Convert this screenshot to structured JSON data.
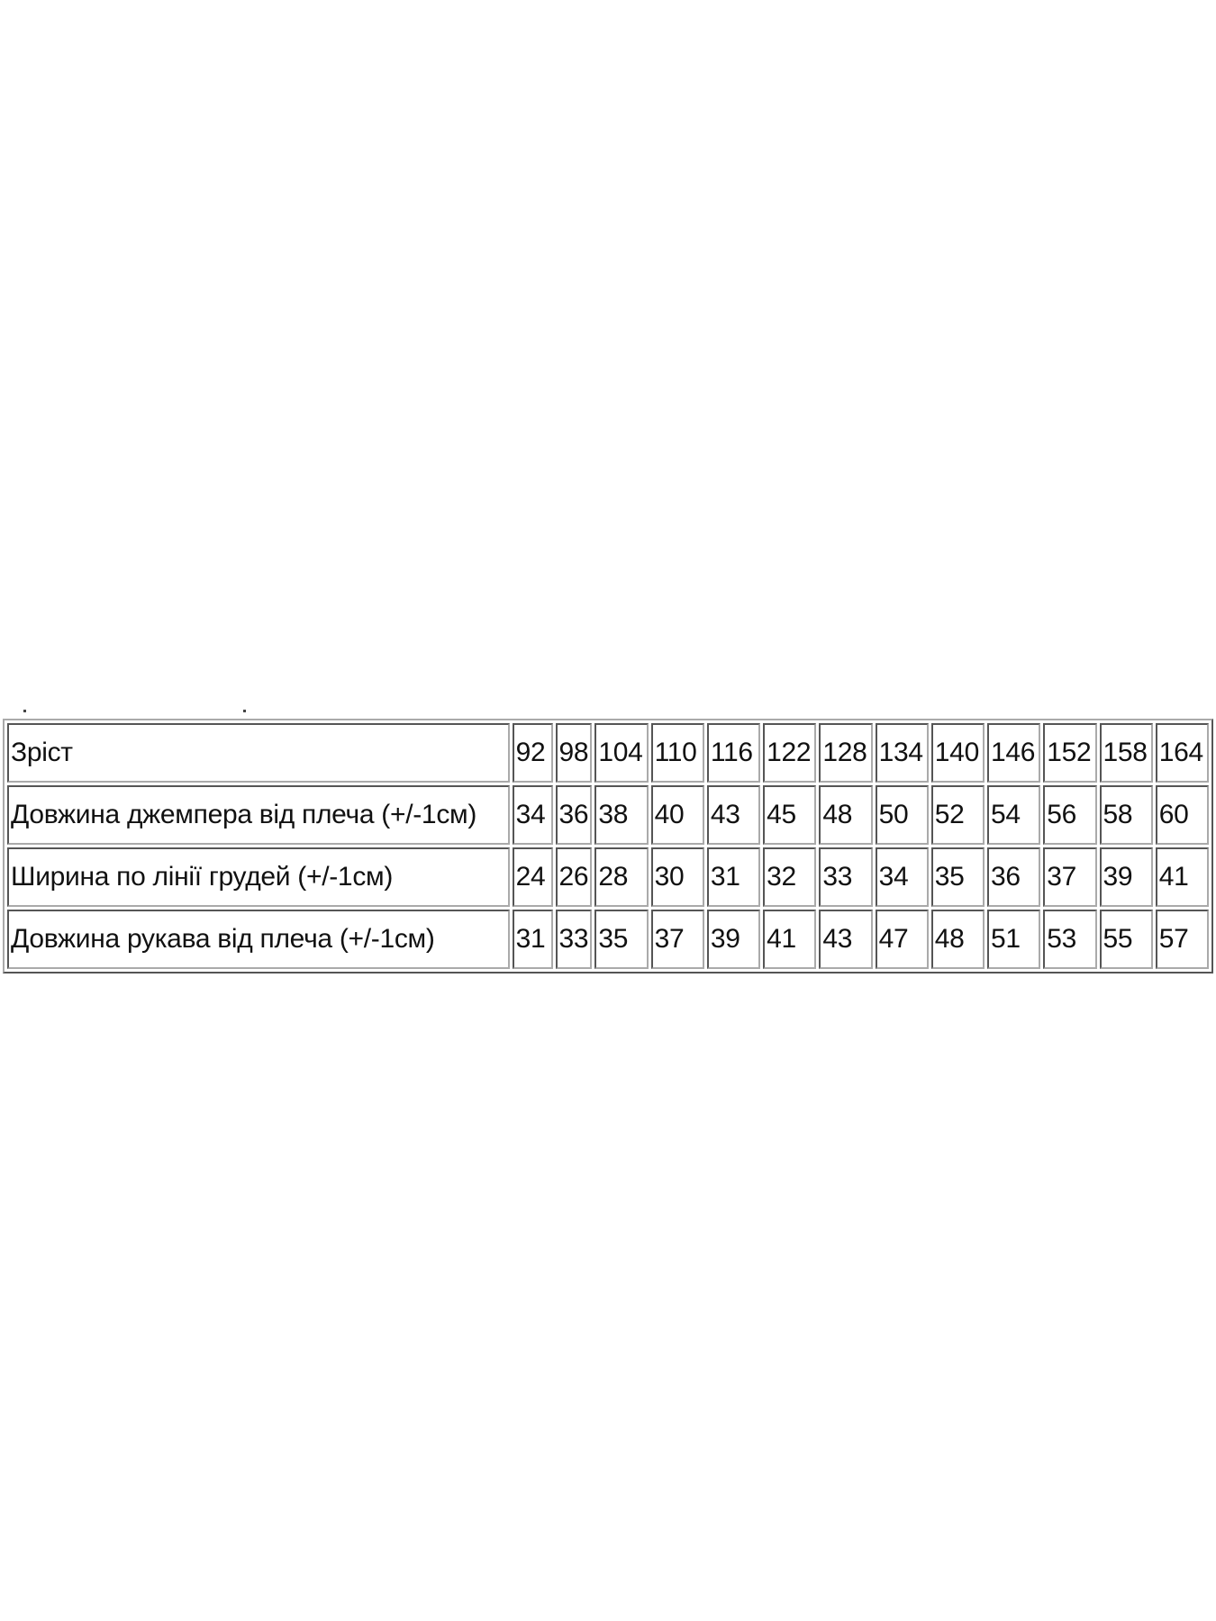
{
  "size_table": {
    "header": {
      "label": "Зріст",
      "values": [
        "92",
        "98",
        "104",
        "110",
        "116",
        "122",
        "128",
        "134",
        "140",
        "146",
        "152",
        "158",
        "164"
      ]
    },
    "rows": [
      {
        "label": "Довжина джемпера від плеча (+/-1см)",
        "values": [
          "34",
          "36",
          "38",
          "40",
          "43",
          "45",
          "48",
          "50",
          "52",
          "54",
          "56",
          "58",
          "60"
        ]
      },
      {
        "label": "Ширина по лінії грудей (+/-1см)",
        "values": [
          "24",
          "26",
          "28",
          "30",
          "31",
          "32",
          "33",
          "34",
          "35",
          "36",
          "37",
          "39",
          "41"
        ]
      },
      {
        "label": "Довжина рукава від плеча (+/-1см)",
        "values": [
          "31",
          "33",
          "35",
          "37",
          "39",
          "41",
          "43",
          "47",
          "48",
          "51",
          "53",
          "55",
          "57"
        ]
      }
    ]
  }
}
